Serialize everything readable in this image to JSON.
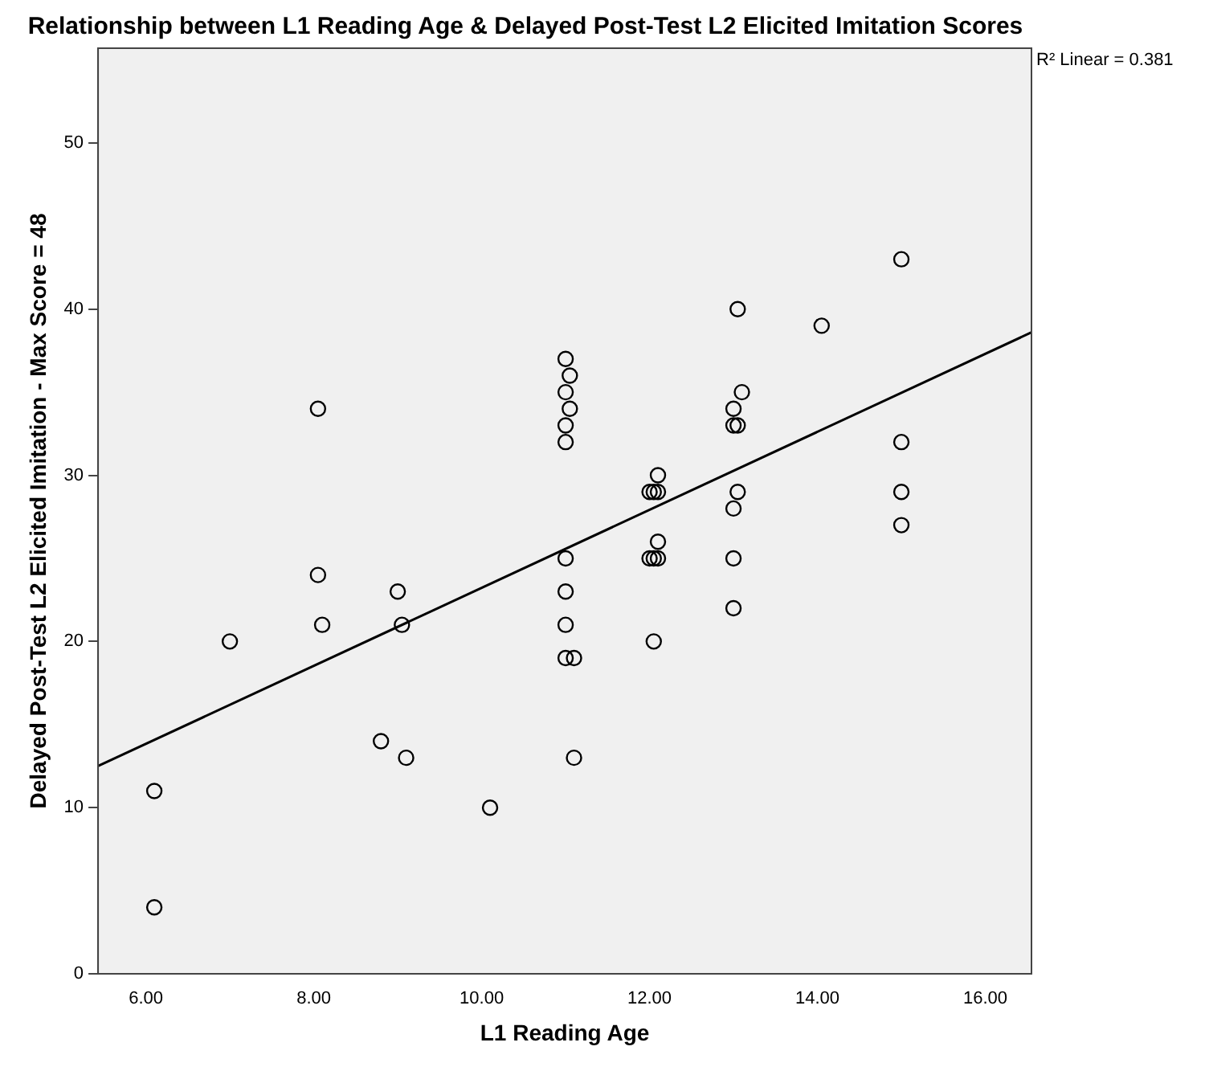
{
  "chart_data": {
    "type": "scatter",
    "title": "Relationship between L1 Reading Age & Delayed Post-Test L2 Elicited Imitation Scores",
    "xlabel": "L1 Reading Age",
    "ylabel": "Delayed Post-Test L2 Elicited Imitation - Max Score = 48",
    "xlim": [
      5.43,
      16.55
    ],
    "ylim": [
      0,
      55.7
    ],
    "xticks": [
      {
        "value": 6,
        "label": "6.00"
      },
      {
        "value": 8,
        "label": "8.00"
      },
      {
        "value": 10,
        "label": "10.00"
      },
      {
        "value": 12,
        "label": "12.00"
      },
      {
        "value": 14,
        "label": "14.00"
      },
      {
        "value": 16,
        "label": "16.00"
      }
    ],
    "yticks": [
      0,
      10,
      20,
      30,
      40,
      50
    ],
    "grid": false,
    "legend": false,
    "annotations": [
      "R² Linear = 0.381"
    ],
    "series": [
      {
        "marker": "circle",
        "color": "#000000",
        "x": [
          6.1,
          6.1,
          7.0,
          8.05,
          8.05,
          8.1,
          8.8,
          9.0,
          9.05,
          9.1,
          10.1,
          11.0,
          11.0,
          11.0,
          11.0,
          11.0,
          11.0,
          11.0,
          11.0,
          11.05,
          11.05,
          11.1,
          11.1,
          12.0,
          12.05,
          12.0,
          12.05,
          12.05,
          12.1,
          12.1,
          12.1,
          12.1,
          13.0,
          13.0,
          13.0,
          13.0,
          13.0,
          13.05,
          13.05,
          13.05,
          13.1,
          14.05,
          15.0,
          15.0,
          15.0,
          15.0
        ],
        "values": [
          11,
          4,
          20,
          34,
          24,
          21,
          14,
          23,
          21,
          13,
          10,
          37,
          35,
          33,
          32,
          25,
          23,
          21,
          19,
          36,
          34,
          19,
          13,
          29,
          29,
          25,
          25,
          20,
          30,
          29,
          26,
          25,
          34,
          33,
          28,
          25,
          22,
          40,
          33,
          29,
          35,
          39,
          43,
          32,
          29,
          27
        ]
      },
      {
        "type": "line",
        "marker": "none",
        "color": "#000000",
        "x": [
          5.43,
          16.55
        ],
        "values": [
          12.5,
          38.6
        ]
      }
    ]
  }
}
